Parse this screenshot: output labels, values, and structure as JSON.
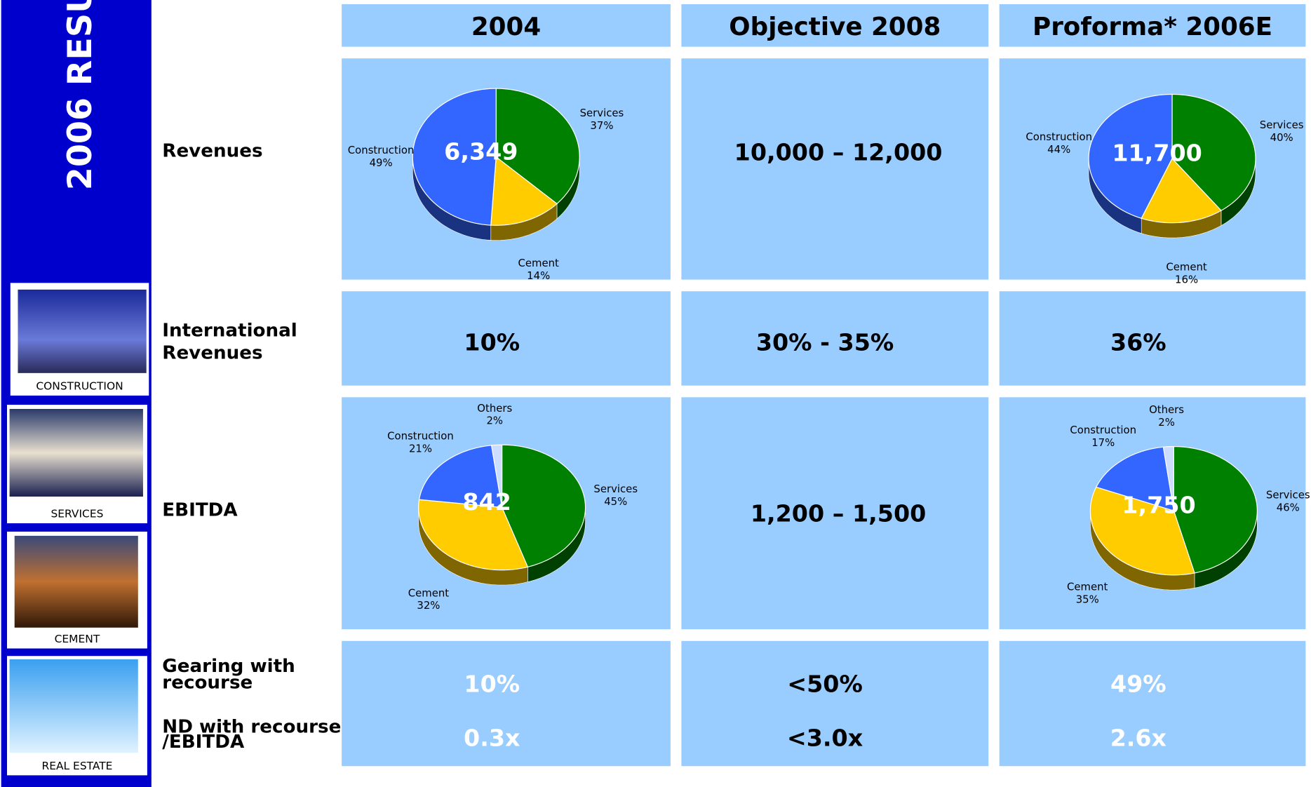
{
  "sidebar": {
    "title": "2006 RESU",
    "segments": [
      "CONSTRUCTION",
      "SERVICES",
      "CEMENT",
      "REAL ESTATE"
    ]
  },
  "table": {
    "headers": [
      "2004",
      "Objective 2008",
      "Proforma* 2006E"
    ],
    "rows": [
      {
        "label": [
          "Revenues"
        ],
        "objective": "10,000 – 12,000"
      },
      {
        "label": [
          "International",
          "Revenues"
        ],
        "cells": [
          "10%",
          "30% - 35%",
          "36%"
        ]
      },
      {
        "label": [
          "EBITDA"
        ],
        "objective": "1,200 – 1,500"
      },
      {
        "label": [
          "Gearing with",
          "recourse"
        ],
        "cells": [
          "10%",
          "<50%",
          "49%"
        ]
      },
      {
        "label": [
          "ND with recourse",
          "/EBITDA"
        ],
        "cells": [
          "0.3x",
          "<3.0x",
          "2.6x"
        ]
      }
    ]
  },
  "chart_data": [
    {
      "type": "pie",
      "total_label": "6,349",
      "categories": [
        "Services",
        "Cement",
        "Construction"
      ],
      "values": [
        37,
        14,
        49
      ],
      "value_labels": [
        "37%",
        "14%",
        "49%"
      ],
      "colors": [
        "#008000",
        "#ffcc00",
        "#3366ff"
      ]
    },
    {
      "type": "pie",
      "total_label": "11,700",
      "categories": [
        "Services",
        "Cement",
        "Construction"
      ],
      "values": [
        40,
        16,
        44
      ],
      "value_labels": [
        "40%",
        "16%",
        "44%"
      ],
      "colors": [
        "#008000",
        "#ffcc00",
        "#3366ff"
      ]
    },
    {
      "type": "pie",
      "total_label": "842",
      "categories": [
        "Services",
        "Cement",
        "Construction",
        "Others"
      ],
      "values": [
        45,
        32,
        21,
        2
      ],
      "value_labels": [
        "45%",
        "32%",
        "21%",
        "2%"
      ],
      "colors": [
        "#008000",
        "#ffcc00",
        "#3366ff",
        "#ccddff"
      ]
    },
    {
      "type": "pie",
      "total_label": "1,750",
      "categories": [
        "Services",
        "Cement",
        "Construction",
        "Others"
      ],
      "values": [
        46,
        35,
        17,
        2
      ],
      "value_labels": [
        "46%",
        "35%",
        "17%",
        "2%"
      ],
      "colors": [
        "#008000",
        "#ffcc00",
        "#3366ff",
        "#ccddff"
      ]
    }
  ]
}
